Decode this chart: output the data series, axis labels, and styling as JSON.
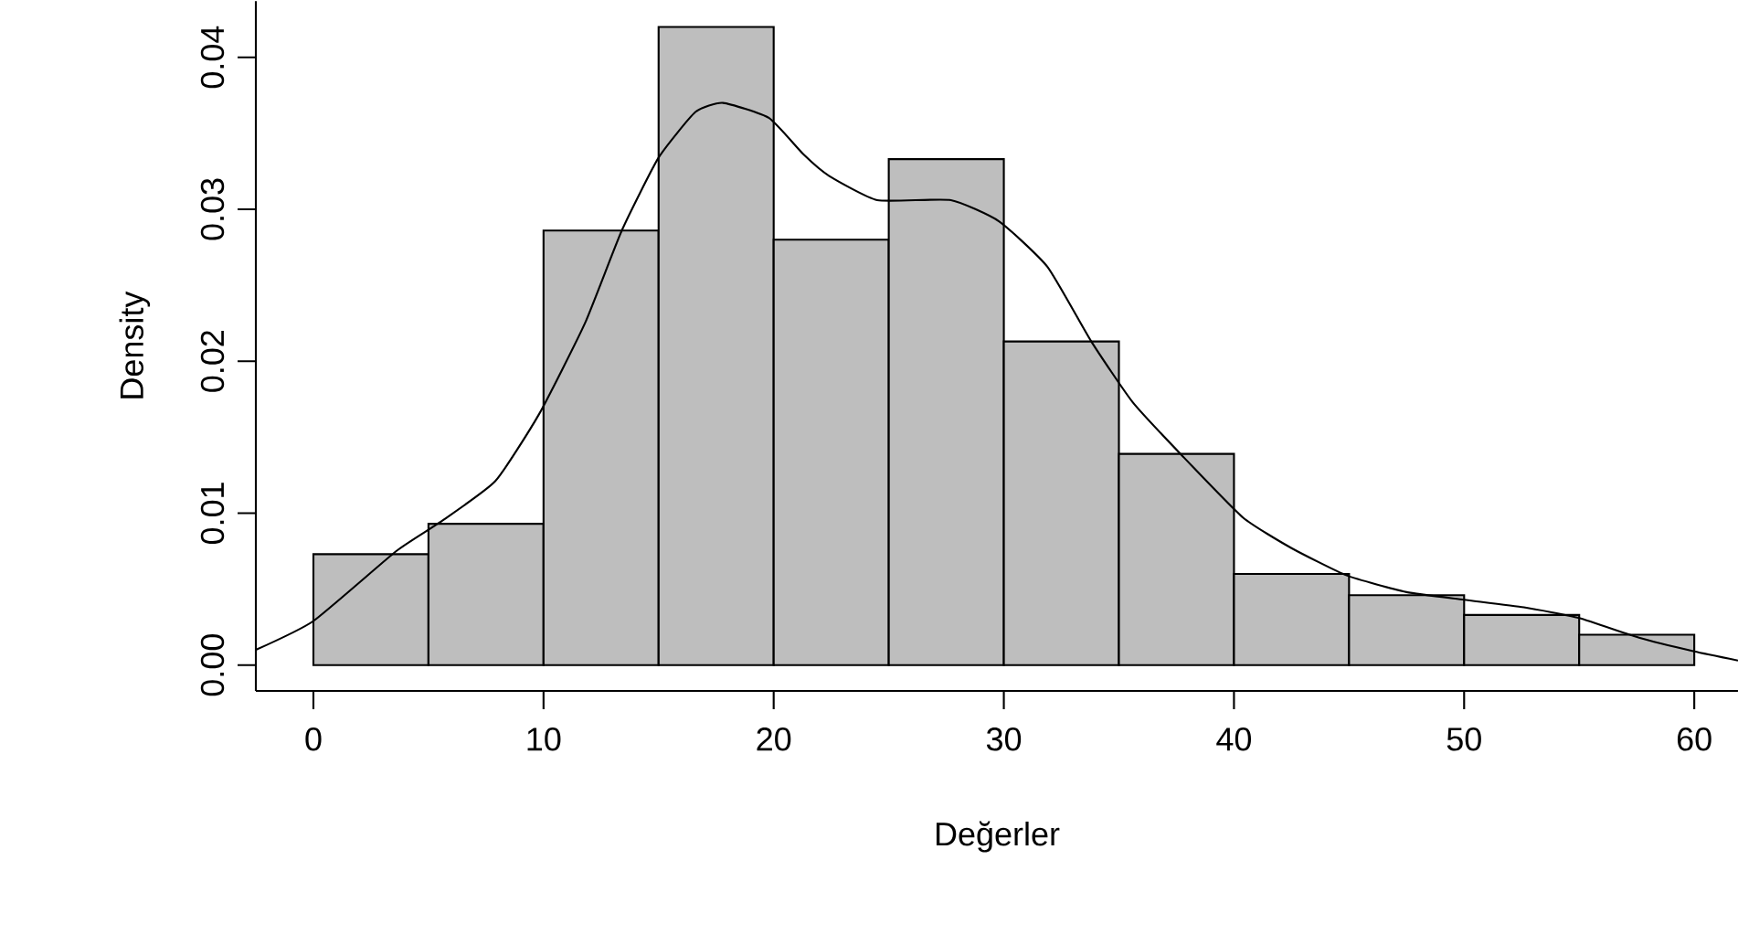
{
  "chart_data": {
    "type": "histogram",
    "xlabel": "Değerler",
    "ylabel": "Density",
    "bins": [
      0,
      5,
      10,
      15,
      20,
      25,
      30,
      35,
      40,
      45,
      50,
      55,
      60
    ],
    "values": [
      0.0073,
      0.0093,
      0.0286,
      0.042,
      0.028,
      0.0333,
      0.0213,
      0.0139,
      0.006,
      0.0046,
      0.0033,
      0.002
    ],
    "color": "#bebebe",
    "series": [
      {
        "type": "line",
        "color": "#000000",
        "x": [
          -2.5,
          0,
          3.6,
          5.5,
          7.9,
          9.8,
          11.8,
          13.4,
          15.0,
          16.6,
          17.8,
          19.8,
          21.3,
          22.4,
          24.5,
          27.7,
          29.8,
          31.9,
          33.8,
          35.6,
          37.8,
          40.4,
          42.5,
          44.9,
          47.5,
          50.0,
          52.6,
          55.0,
          57.6,
          60.0,
          61.9
        ],
        "values": [
          0.001,
          0.0029,
          0.0075,
          0.0094,
          0.0121,
          0.0165,
          0.0225,
          0.0286,
          0.0334,
          0.0364,
          0.037,
          0.036,
          0.0336,
          0.0322,
          0.0306,
          0.0306,
          0.0292,
          0.0262,
          0.0213,
          0.0173,
          0.0137,
          0.0097,
          0.0077,
          0.0059,
          0.0048,
          0.0043,
          0.0038,
          0.0031,
          0.0018,
          0.0009,
          0.0003
        ]
      }
    ],
    "xlim": [
      -2.5,
      61.9
    ],
    "ylim": [
      -0.0017,
      0.0437
    ],
    "xticks": [
      0,
      10,
      20,
      30,
      40,
      50,
      60
    ],
    "yticks": [
      {
        "value": 0,
        "label": "0.00"
      },
      0.01,
      0.02,
      0.03,
      0.04
    ]
  }
}
